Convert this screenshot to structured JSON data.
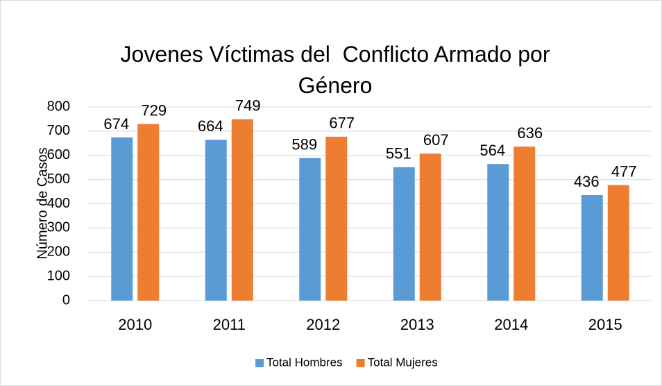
{
  "chart_data": {
    "type": "bar",
    "title": "Jovenes Víctimas del  Conflicto Armado por Género",
    "y_label": "Número de Casos",
    "categories": [
      "2010",
      "2011",
      "2012",
      "2013",
      "2014",
      "2015"
    ],
    "series": [
      {
        "name": "Total Hombres",
        "color": "#5b9bd5",
        "values": [
          674,
          664,
          589,
          551,
          564,
          436
        ]
      },
      {
        "name": "Total Mujeres",
        "color": "#ed7d31",
        "values": [
          729,
          749,
          677,
          607,
          636,
          477
        ]
      }
    ],
    "ylim": [
      0,
      800
    ],
    "yticks": [
      0,
      100,
      200,
      300,
      400,
      500,
      600,
      700,
      800
    ],
    "grid": true,
    "legend": "bottom",
    "data_labels": true
  }
}
